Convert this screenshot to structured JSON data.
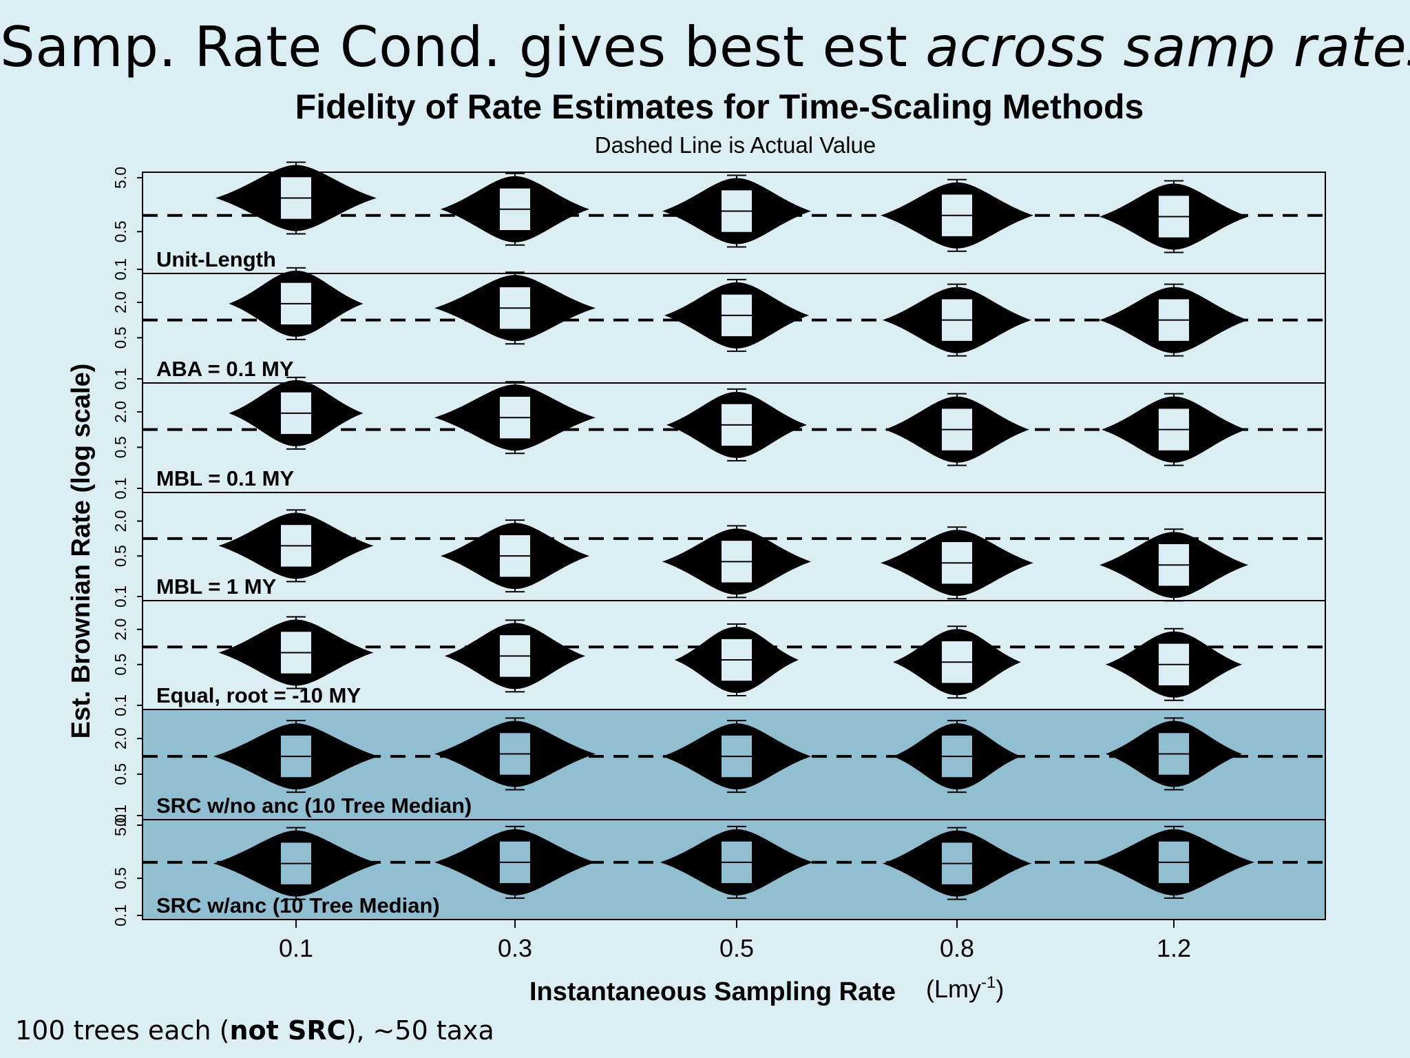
{
  "slide": {
    "title_main": "Samp. Rate Cond. gives best est ",
    "title_italic": "across samp rates",
    "footnote_pre": "100 trees each (",
    "footnote_bold": "not SRC",
    "footnote_post": "), ~50 taxa"
  },
  "colors": {
    "background": "#dbeef3",
    "highlight_panel": "#8fbfd0",
    "violin": "#000000"
  },
  "chart_data": {
    "type": "violin",
    "title": "Fidelity of Rate Estimates for Time-Scaling Methods",
    "subtitle": "Dashed Line is Actual Value",
    "xlabel": "Instantaneous Sampling Rate",
    "xlabel_unit_base": "(Lmy",
    "xlabel_unit_sup": "-1",
    "xlabel_unit_close": ")",
    "ylabel": "Est. Brownian Rate (log scale)",
    "y_scale": "log",
    "y_ticks": [
      "0.1",
      "0.5",
      "2.0",
      "5.0"
    ],
    "categories": [
      "0.1",
      "0.3",
      "0.5",
      "0.8",
      "1.2"
    ],
    "actual_value": 1.0,
    "panels": [
      {
        "label": "Unit-Length",
        "highlight": false,
        "y_tick_labels": [
          "5.0",
          "0.5",
          "0.1"
        ],
        "ylim": [
          0.1,
          5.0
        ],
        "medians": [
          2.1,
          1.3,
          1.2,
          1.0,
          0.95
        ],
        "widths": [
          0.78,
          0.72,
          0.72,
          0.74,
          0.72
        ]
      },
      {
        "label": "ABA = 0.1 MY",
        "highlight": false,
        "y_tick_labels": [
          "2.0",
          "0.5",
          "0.1"
        ],
        "ylim": [
          0.1,
          5.0
        ],
        "medians": [
          1.9,
          1.6,
          1.2,
          1.0,
          1.0
        ],
        "widths": [
          0.65,
          0.78,
          0.7,
          0.72,
          0.72
        ]
      },
      {
        "label": "MBL = 0.1 MY",
        "highlight": false,
        "y_tick_labels": [
          "2.0",
          "0.5",
          "0.1"
        ],
        "ylim": [
          0.1,
          5.0
        ],
        "medians": [
          1.9,
          1.6,
          1.2,
          1.0,
          1.0
        ],
        "widths": [
          0.65,
          0.78,
          0.68,
          0.7,
          0.7
        ]
      },
      {
        "label": "MBL = 1 MY",
        "highlight": false,
        "y_tick_labels": [
          "2.0",
          "0.5",
          "0.1"
        ],
        "ylim": [
          0.1,
          5.0
        ],
        "medians": [
          0.75,
          0.5,
          0.4,
          0.38,
          0.35
        ],
        "widths": [
          0.75,
          0.72,
          0.72,
          0.74,
          0.72
        ]
      },
      {
        "label": "Equal, root = -10 MY",
        "highlight": false,
        "y_tick_labels": [
          "2.0",
          "0.5",
          "0.1"
        ],
        "ylim": [
          0.1,
          5.0
        ],
        "medians": [
          0.8,
          0.7,
          0.6,
          0.55,
          0.5
        ],
        "widths": [
          0.75,
          0.68,
          0.6,
          0.62,
          0.66
        ]
      },
      {
        "label": "SRC w/no anc (10 Tree Median)",
        "highlight": true,
        "y_tick_labels": [
          "2.0",
          "0.5",
          "0.1"
        ],
        "ylim": [
          0.1,
          5.0
        ],
        "medians": [
          1.0,
          1.1,
          1.0,
          1.0,
          1.1
        ],
        "widths": [
          0.8,
          0.78,
          0.72,
          0.62,
          0.66
        ]
      },
      {
        "label": "SRC w/anc (10 Tree Median)",
        "highlight": true,
        "y_tick_labels": [
          "5.0",
          "0.5",
          "0.1"
        ],
        "ylim": [
          0.1,
          5.0
        ],
        "medians": [
          0.95,
          1.0,
          1.0,
          0.95,
          1.0
        ],
        "widths": [
          0.8,
          0.78,
          0.74,
          0.72,
          0.78
        ]
      }
    ],
    "grid": false,
    "legend": "none"
  }
}
